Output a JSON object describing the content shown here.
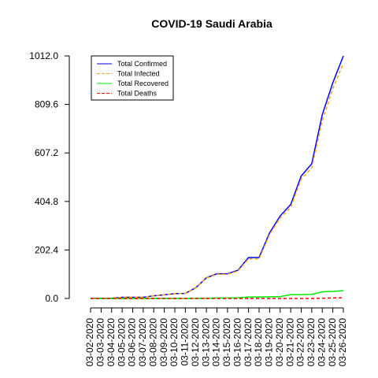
{
  "chart_data": {
    "type": "line",
    "title": "COVID-19 Saudi Arabia",
    "xlabel": "",
    "ylabel": "",
    "ylim": [
      0,
      1012
    ],
    "yticks": [
      "0.0",
      "202.4",
      "404.8",
      "607.2",
      "809.6",
      "1012.0"
    ],
    "grid": false,
    "legend_position": "top-left",
    "x": [
      "03-02-2020",
      "03-03-2020",
      "03-04-2020",
      "03-05-2020",
      "03-06-2020",
      "03-07-2020",
      "03-08-2020",
      "03-09-2020",
      "03-10-2020",
      "03-11-2020",
      "03-12-2020",
      "03-13-2020",
      "03-14-2020",
      "03-15-2020",
      "03-16-2020",
      "03-17-2020",
      "03-18-2020",
      "03-19-2020",
      "03-20-2020",
      "03-21-2020",
      "03-22-2020",
      "03-23-2020",
      "03-24-2020",
      "03-25-2020",
      "03-26-2020"
    ],
    "series": [
      {
        "name": "Total Confirmed",
        "color": "#0000ff",
        "dash": "solid",
        "values": [
          1,
          1,
          1,
          5,
          5,
          5,
          11,
          15,
          20,
          21,
          45,
          86,
          103,
          103,
          118,
          171,
          171,
          274,
          344,
          392,
          511,
          562,
          767,
          900,
          1012
        ]
      },
      {
        "name": "Total Infected",
        "color": "#ffa500",
        "dash": "dashed",
        "values": [
          1,
          1,
          1,
          5,
          5,
          5,
          11,
          15,
          20,
          21,
          44,
          85,
          101,
          101,
          115,
          165,
          165,
          267,
          336,
          380,
          498,
          545,
          742,
          876,
          981
        ]
      },
      {
        "name": "Total Recovered",
        "color": "#00ee00",
        "dash": "solid",
        "values": [
          0,
          0,
          0,
          0,
          0,
          0,
          0,
          0,
          0,
          0,
          1,
          1,
          2,
          2,
          3,
          6,
          6,
          7,
          8,
          16,
          16,
          17,
          28,
          29,
          33
        ]
      },
      {
        "name": "Total Deaths",
        "color": "#ff0000",
        "dash": "dashed",
        "values": [
          0,
          0,
          0,
          0,
          0,
          0,
          0,
          0,
          0,
          0,
          0,
          0,
          0,
          0,
          0,
          0,
          0,
          0,
          0,
          0,
          0,
          0,
          1,
          2,
          3
        ]
      }
    ]
  }
}
